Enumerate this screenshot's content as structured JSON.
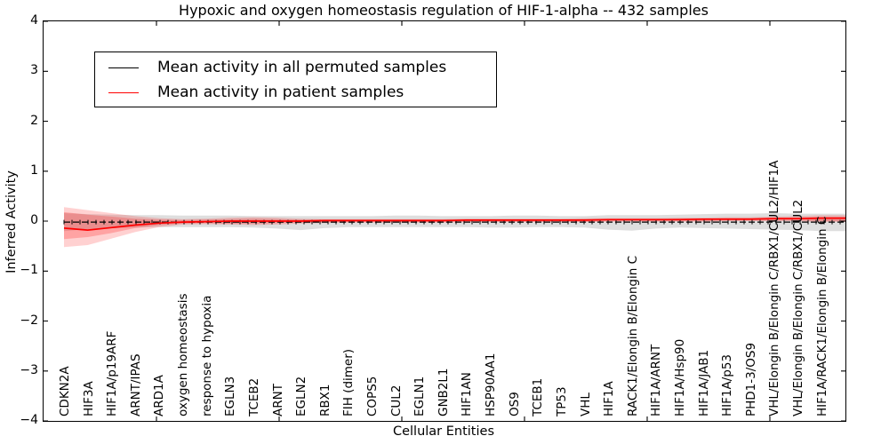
{
  "title": "Hypoxic and oxygen homeostasis regulation of HIF-1-alpha -- 432 samples",
  "axes": {
    "ylabel": "Inferred Activity",
    "xlabel": "Cellular Entities",
    "ytick_labels": [
      "4",
      "3",
      "2",
      "1",
      "0",
      "−1",
      "−2",
      "−3",
      "−4"
    ],
    "ytick_values": [
      4,
      3,
      2,
      1,
      0,
      -1,
      -2,
      -3,
      -4
    ],
    "ylim": [
      -4,
      4
    ]
  },
  "chart_data": {
    "type": "line",
    "title": "Hypoxic and oxygen homeostasis regulation of HIF-1-alpha -- 432 samples",
    "xlabel": "Cellular Entities",
    "ylabel": "Inferred Activity",
    "ylim": [
      -4,
      4
    ],
    "grid": false,
    "legend_position": "upper left",
    "categories": [
      "CDKN2A",
      "HIF3A",
      "HIF1A/p19ARF",
      "ARNT/IPAS",
      "ARD1A",
      "oxygen homeostasis",
      "response to hypoxia",
      "EGLN3",
      "TCEB2",
      "ARNT",
      "EGLN2",
      "RBX1",
      "FIH (dimer)",
      "COPS5",
      "CUL2",
      "EGLN1",
      "GNB2L1",
      "HIF1AN",
      "HSP90AA1",
      "OS9",
      "TCEB1",
      "TP53",
      "VHL",
      "HIF1A",
      "RACK1/Elongin B/Elongin C",
      "HIF1A/ARNT",
      "HIF1A/Hsp90",
      "HIF1A/JAB1",
      "HIF1A/p53",
      "PHD1-3/OS9",
      "VHL/Elongin B/Elongin C/RBX1/CUL2/HIF1A",
      "VHL/Elongin B/Elongin C/RBX1/CUL2",
      "HIF1A/RACK1/Elongin B/Elongin C"
    ],
    "series": [
      {
        "name": "Mean activity in all permuted samples",
        "color": "#000000",
        "style": "dashed-with-tick-markers",
        "values": [
          -0.02,
          -0.02,
          -0.02,
          -0.02,
          -0.02,
          -0.02,
          -0.02,
          -0.02,
          -0.02,
          -0.02,
          -0.02,
          -0.02,
          -0.02,
          -0.02,
          -0.02,
          -0.02,
          -0.02,
          -0.02,
          -0.02,
          -0.02,
          -0.02,
          -0.02,
          -0.02,
          -0.02,
          -0.02,
          -0.02,
          -0.02,
          -0.02,
          -0.02,
          -0.02,
          -0.02,
          -0.02,
          -0.02
        ]
      },
      {
        "name": "Mean activity in patient samples",
        "color": "#ff0000",
        "style": "solid",
        "values": [
          -0.14,
          -0.18,
          -0.13,
          -0.08,
          -0.04,
          -0.02,
          -0.01,
          0.0,
          0.0,
          0.0,
          0.0,
          0.01,
          0.01,
          0.01,
          0.01,
          0.01,
          0.01,
          0.02,
          0.02,
          0.02,
          0.02,
          0.02,
          0.02,
          0.03,
          0.03,
          0.03,
          0.03,
          0.04,
          0.04,
          0.04,
          0.05,
          0.05,
          0.06
        ]
      }
    ],
    "bands": [
      {
        "name": "permuted-samples-range",
        "color": "rgba(0,0,0,0.13)",
        "upper": [
          0.16,
          0.14,
          0.13,
          0.12,
          0.12,
          0.11,
          0.11,
          0.11,
          0.1,
          0.1,
          0.1,
          0.1,
          0.1,
          0.1,
          0.11,
          0.11,
          0.1,
          0.1,
          0.1,
          0.11,
          0.11,
          0.1,
          0.1,
          0.12,
          0.12,
          0.12,
          0.13,
          0.14,
          0.15,
          0.15,
          0.16,
          0.15,
          0.15
        ],
        "lower": [
          -0.2,
          -0.16,
          -0.14,
          -0.13,
          -0.12,
          -0.12,
          -0.12,
          -0.12,
          -0.13,
          -0.15,
          -0.18,
          -0.14,
          -0.12,
          -0.12,
          -0.12,
          -0.12,
          -0.12,
          -0.12,
          -0.13,
          -0.13,
          -0.12,
          -0.12,
          -0.13,
          -0.17,
          -0.19,
          -0.15,
          -0.13,
          -0.14,
          -0.15,
          -0.16,
          -0.17,
          -0.18,
          -0.2
        ]
      },
      {
        "name": "patient-samples-range-outer",
        "color": "rgba(255,0,0,0.18)",
        "upper": [
          0.28,
          0.22,
          0.16,
          0.1,
          0.06,
          0.04,
          0.05,
          0.07,
          0.08,
          0.07,
          0.05,
          0.04,
          0.04,
          0.04,
          0.04,
          0.04,
          0.04,
          0.05,
          0.05,
          0.05,
          0.05,
          0.05,
          0.06,
          0.06,
          0.06,
          0.06,
          0.07,
          0.07,
          0.08,
          0.08,
          0.09,
          0.1,
          0.12
        ],
        "lower": [
          -0.52,
          -0.48,
          -0.35,
          -0.22,
          -0.12,
          -0.07,
          -0.06,
          -0.07,
          -0.08,
          -0.07,
          -0.05,
          -0.04,
          -0.03,
          -0.03,
          -0.03,
          -0.03,
          -0.03,
          -0.02,
          -0.02,
          -0.02,
          -0.02,
          -0.02,
          -0.02,
          -0.01,
          -0.01,
          -0.01,
          -0.01,
          -0.01,
          0.0,
          0.0,
          0.0,
          0.0,
          -0.02
        ],
        "note": "wide wedge at left that narrows by ARD1A"
      },
      {
        "name": "patient-samples-range-inner",
        "color": "rgba(255,0,0,0.22)",
        "upper": [
          0.18,
          0.13,
          0.09,
          0.05,
          0.03,
          0.02,
          0.03,
          0.04,
          0.05,
          0.04,
          0.03,
          0.03,
          0.03,
          0.03,
          0.03,
          0.03,
          0.03,
          0.03,
          0.03,
          0.03,
          0.03,
          0.03,
          0.04,
          0.04,
          0.04,
          0.04,
          0.05,
          0.05,
          0.06,
          0.06,
          0.07,
          0.07,
          0.08
        ],
        "lower": [
          -0.36,
          -0.32,
          -0.24,
          -0.14,
          -0.08,
          -0.05,
          -0.04,
          -0.05,
          -0.05,
          -0.04,
          -0.03,
          -0.02,
          -0.02,
          -0.02,
          -0.02,
          -0.02,
          -0.02,
          -0.01,
          -0.01,
          -0.01,
          -0.01,
          -0.01,
          -0.01,
          0.0,
          0.0,
          0.0,
          0.0,
          0.0,
          0.01,
          0.01,
          0.01,
          0.01,
          0.0
        ]
      }
    ]
  },
  "legend": {
    "items": [
      {
        "label": "Mean activity in all permuted samples",
        "color": "#000000"
      },
      {
        "label": "Mean activity in patient samples",
        "color": "#ff0000"
      }
    ]
  }
}
